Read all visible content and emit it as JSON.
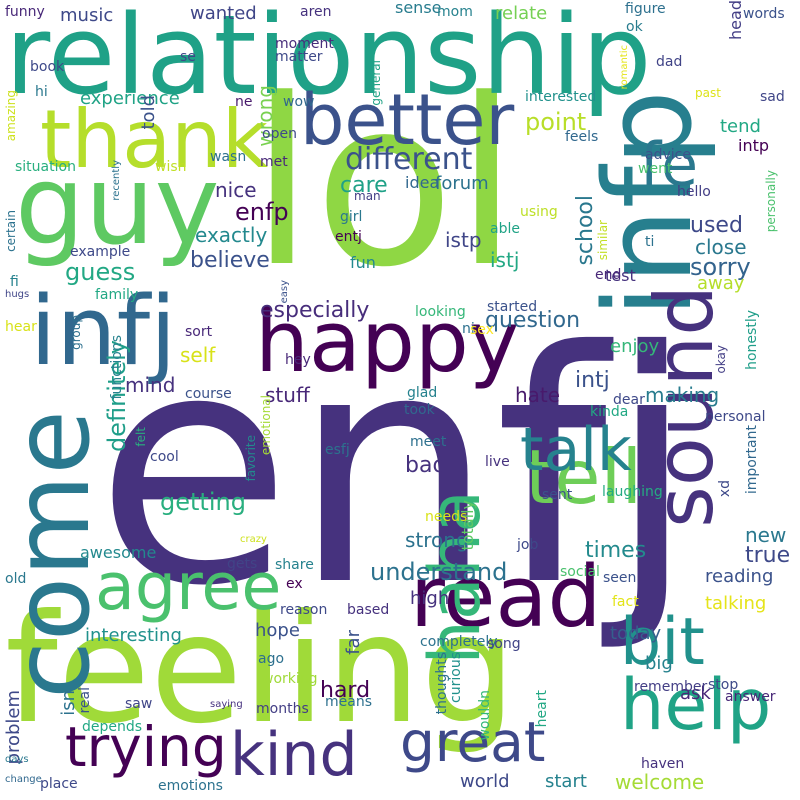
{
  "background": "#ffffff",
  "palette": [
    "#440154",
    "#46327e",
    "#365c8d",
    "#277f8e",
    "#1fa187",
    "#4ac16d",
    "#a0da39",
    "#fde725"
  ],
  "words": [
    {
      "text": "enfj",
      "color": "#46327e"
    },
    {
      "text": "lol",
      "color": "#8fd744"
    },
    {
      "text": "relationship",
      "color": "#1fa187"
    },
    {
      "text": "feeling",
      "color": "#a0da39"
    },
    {
      "text": "infp",
      "color": "#277f8e"
    },
    {
      "text": "guy",
      "color": "#5ec962"
    },
    {
      "text": "infj",
      "color": "#31688e"
    },
    {
      "text": "come",
      "color": "#2a788e"
    },
    {
      "text": "happy",
      "color": "#440154"
    },
    {
      "text": "thank",
      "color": "#b5de2b"
    },
    {
      "text": "better",
      "color": "#3b528b"
    },
    {
      "text": "sound",
      "color": "#46327e"
    },
    {
      "text": "read",
      "color": "#440154"
    },
    {
      "text": "tell",
      "color": "#6ece58"
    },
    {
      "text": "haha",
      "color": "#35b779"
    },
    {
      "text": "agree",
      "color": "#4ac16d"
    },
    {
      "text": "kind",
      "color": "#46327e"
    },
    {
      "text": "help",
      "color": "#20a386"
    },
    {
      "text": "bit",
      "color": "#21918c"
    },
    {
      "text": "great",
      "color": "#3e4989"
    },
    {
      "text": "trying",
      "color": "#440154"
    },
    {
      "text": "fe",
      "color": "#2a788e"
    },
    {
      "text": "talk",
      "color": "#26828e"
    },
    {
      "text": "different",
      "color": "#3b528b"
    },
    {
      "text": "understand",
      "color": "#2c728e"
    },
    {
      "text": "question",
      "color": "#31688e"
    },
    {
      "text": "definitely",
      "color": "#1f9e89"
    },
    {
      "text": "especially",
      "color": "#472d7b"
    },
    {
      "text": "getting",
      "color": "#29af7f"
    },
    {
      "text": "believe",
      "color": "#3b528b"
    },
    {
      "text": "guess",
      "color": "#22a884"
    },
    {
      "text": "enfp",
      "color": "#440154"
    },
    {
      "text": "care",
      "color": "#1fa187"
    },
    {
      "text": "point",
      "color": "#b8de29"
    },
    {
      "text": "sorry",
      "color": "#33638d"
    },
    {
      "text": "used",
      "color": "#3e4989"
    },
    {
      "text": "school",
      "color": "#2a788e"
    },
    {
      "text": "exactly",
      "color": "#23898e"
    },
    {
      "text": "nice",
      "color": "#46327e"
    },
    {
      "text": "wrong",
      "color": "#7ad151"
    },
    {
      "text": "istp",
      "color": "#404688"
    },
    {
      "text": "istj",
      "color": "#22a884"
    },
    {
      "text": "intj",
      "color": "#3b528b"
    },
    {
      "text": "times",
      "color": "#238a8d"
    },
    {
      "text": "true",
      "color": "#3e4989"
    },
    {
      "text": "new",
      "color": "#2a788e"
    },
    {
      "text": "bad",
      "color": "#46327e"
    },
    {
      "text": "hard",
      "color": "#440154"
    },
    {
      "text": "strong",
      "color": "#2c728e"
    },
    {
      "text": "stuff",
      "color": "#482878"
    },
    {
      "text": "hate",
      "color": "#481a6c"
    },
    {
      "text": "making",
      "color": "#287c8e"
    },
    {
      "text": "mind",
      "color": "#46327e"
    },
    {
      "text": "self",
      "color": "#d8e219"
    },
    {
      "text": "experience",
      "color": "#20a386"
    },
    {
      "text": "tend",
      "color": "#22a884"
    },
    {
      "text": "music",
      "color": "#3e4989"
    },
    {
      "text": "wanted",
      "color": "#404688"
    },
    {
      "text": "relate",
      "color": "#75d054"
    },
    {
      "text": "sense",
      "color": "#287c8e"
    },
    {
      "text": "told",
      "color": "#3b528b"
    },
    {
      "text": "forum",
      "color": "#2c728e"
    },
    {
      "text": "idea",
      "color": "#31688e"
    },
    {
      "text": "enjoy",
      "color": "#35b779"
    },
    {
      "text": "close",
      "color": "#2a788e"
    },
    {
      "text": "away",
      "color": "#b5de2b"
    },
    {
      "text": "test",
      "color": "#46327e"
    },
    {
      "text": "fun",
      "color": "#23898e"
    },
    {
      "text": "talking",
      "color": "#e5e419"
    },
    {
      "text": "reading",
      "color": "#3b528b"
    },
    {
      "text": "welcome",
      "color": "#a5db36"
    },
    {
      "text": "today",
      "color": "#355f8d"
    },
    {
      "text": "interesting",
      "color": "#21918c"
    },
    {
      "text": "hope",
      "color": "#3b528b"
    },
    {
      "text": "big",
      "color": "#26828e"
    },
    {
      "text": "ask",
      "color": "#482878"
    },
    {
      "text": "high",
      "color": "#46327e"
    },
    {
      "text": "far",
      "color": "#3b528b"
    },
    {
      "text": "problem",
      "color": "#3e4989"
    },
    {
      "text": "isn",
      "color": "#2c728e"
    },
    {
      "text": "world",
      "color": "#3e4989"
    },
    {
      "text": "start",
      "color": "#26828e"
    },
    {
      "text": "totally",
      "color": "#5ec962"
    },
    {
      "text": "awesome",
      "color": "#23898e"
    },
    {
      "text": "wow",
      "color": "#31688e"
    },
    {
      "text": "moment",
      "color": "#472d7b"
    },
    {
      "text": "matter",
      "color": "#3e4989"
    },
    {
      "text": "funny",
      "color": "#482878"
    },
    {
      "text": "aren",
      "color": "#46327e"
    },
    {
      "text": "mom",
      "color": "#26828e"
    },
    {
      "text": "figure",
      "color": "#2d708e"
    },
    {
      "text": "ok",
      "color": "#287c8e"
    },
    {
      "text": "head",
      "color": "#433e85"
    },
    {
      "text": "words",
      "color": "#3b528b"
    },
    {
      "text": "dad",
      "color": "#414487"
    },
    {
      "text": "book",
      "color": "#3e4989"
    },
    {
      "text": "se",
      "color": "#404688"
    },
    {
      "text": "hi",
      "color": "#2a788e"
    },
    {
      "text": "amazing",
      "color": "#cde11d"
    },
    {
      "text": "ne",
      "color": "#481a6c"
    },
    {
      "text": "interested",
      "color": "#21918c"
    },
    {
      "text": "past",
      "color": "#dde318"
    },
    {
      "text": "sad",
      "color": "#404688"
    },
    {
      "text": "general",
      "color": "#20a386"
    },
    {
      "text": "romantic",
      "color": "#e5e419"
    },
    {
      "text": "situation",
      "color": "#29af7f"
    },
    {
      "text": "wish",
      "color": "#c0df25"
    },
    {
      "text": "wasn",
      "color": "#2d708e"
    },
    {
      "text": "met",
      "color": "#482878"
    },
    {
      "text": "recently",
      "color": "#2c728e"
    },
    {
      "text": "open",
      "color": "#3e4989"
    },
    {
      "text": "feels",
      "color": "#31688e"
    },
    {
      "text": "advice",
      "color": "#3b528b"
    },
    {
      "text": "went",
      "color": "#4ac16d"
    },
    {
      "text": "hello",
      "color": "#433e85"
    },
    {
      "text": "intp",
      "color": "#440154"
    },
    {
      "text": "personally",
      "color": "#4ac16d"
    },
    {
      "text": "ti",
      "color": "#2c728e"
    },
    {
      "text": "similar",
      "color": "#c2df23"
    },
    {
      "text": "girl",
      "color": "#2a788e"
    },
    {
      "text": "man",
      "color": "#433e85"
    },
    {
      "text": "using",
      "color": "#bddf26"
    },
    {
      "text": "able",
      "color": "#20a386"
    },
    {
      "text": "entj",
      "color": "#440154"
    },
    {
      "text": "end",
      "color": "#482878"
    },
    {
      "text": "example",
      "color": "#3e4989"
    },
    {
      "text": "certain",
      "color": "#2c728e"
    },
    {
      "text": "fi",
      "color": "#26828e"
    },
    {
      "text": "hugs",
      "color": "#404688"
    },
    {
      "text": "family",
      "color": "#22a884"
    },
    {
      "text": "easy",
      "color": "#3b528b"
    },
    {
      "text": "hear",
      "color": "#d8e219"
    },
    {
      "text": "group",
      "color": "#2d708e"
    },
    {
      "text": "sort",
      "color": "#482878"
    },
    {
      "text": "looking",
      "color": "#35b779"
    },
    {
      "text": "started",
      "color": "#3b528b"
    },
    {
      "text": "ni",
      "color": "#2d708e"
    },
    {
      "text": "sex",
      "color": "#fde725"
    },
    {
      "text": "okay",
      "color": "#433e85"
    },
    {
      "text": "honestly",
      "color": "#1f9e89"
    },
    {
      "text": "functions",
      "color": "#26828e"
    },
    {
      "text": "course",
      "color": "#3b528b"
    },
    {
      "text": "hey",
      "color": "#482878"
    },
    {
      "text": "glad",
      "color": "#26828e"
    },
    {
      "text": "took",
      "color": "#31688e"
    },
    {
      "text": "dear",
      "color": "#3e4989"
    },
    {
      "text": "kinda",
      "color": "#22a884"
    },
    {
      "text": "personal",
      "color": "#3e4989"
    },
    {
      "text": "important",
      "color": "#31688e"
    },
    {
      "text": "emotional",
      "color": "#a5db36"
    },
    {
      "text": "favorite",
      "color": "#238a8d"
    },
    {
      "text": "felt",
      "color": "#29af7f"
    },
    {
      "text": "cool",
      "color": "#3e4989"
    },
    {
      "text": "meet",
      "color": "#2d708e"
    },
    {
      "text": "esfj",
      "color": "#2c728e"
    },
    {
      "text": "live",
      "color": "#46327e"
    },
    {
      "text": "sent",
      "color": "#3b528b"
    },
    {
      "text": "laughing",
      "color": "#25ab82"
    },
    {
      "text": "xd",
      "color": "#3e4989"
    },
    {
      "text": "needs",
      "color": "#d8e219"
    },
    {
      "text": "crazy",
      "color": "#cde11d"
    },
    {
      "text": "share",
      "color": "#26828e"
    },
    {
      "text": "job",
      "color": "#3e4989"
    },
    {
      "text": "old",
      "color": "#2a788e"
    },
    {
      "text": "gets",
      "color": "#414487"
    },
    {
      "text": "ex",
      "color": "#440154"
    },
    {
      "text": "social",
      "color": "#4ac16d"
    },
    {
      "text": "seen",
      "color": "#3b528b"
    },
    {
      "text": "reason",
      "color": "#3e4989"
    },
    {
      "text": "based",
      "color": "#46327e"
    },
    {
      "text": "fact",
      "color": "#e2e418"
    },
    {
      "text": "completely",
      "color": "#2c728e"
    },
    {
      "text": "song",
      "color": "#414487"
    },
    {
      "text": "ago",
      "color": "#2d708e"
    },
    {
      "text": "working",
      "color": "#a0da39"
    },
    {
      "text": "real",
      "color": "#3b528b"
    },
    {
      "text": "months",
      "color": "#433e85"
    },
    {
      "text": "thoughts",
      "color": "#2d708e"
    },
    {
      "text": "curious",
      "color": "#21918c"
    },
    {
      "text": "wouldn",
      "color": "#35b779"
    },
    {
      "text": "heart",
      "color": "#22a884"
    },
    {
      "text": "remember",
      "color": "#433e85"
    },
    {
      "text": "stop",
      "color": "#3e4989"
    },
    {
      "text": "answer",
      "color": "#482878"
    },
    {
      "text": "saw",
      "color": "#404688"
    },
    {
      "text": "saying",
      "color": "#46327e"
    },
    {
      "text": "means",
      "color": "#2d708e"
    },
    {
      "text": "depends",
      "color": "#22a884"
    },
    {
      "text": "days",
      "color": "#2a788e"
    },
    {
      "text": "change",
      "color": "#31688e"
    },
    {
      "text": "place",
      "color": "#3e4989"
    },
    {
      "text": "emotions",
      "color": "#2c728e"
    },
    {
      "text": "haven",
      "color": "#46327e"
    }
  ]
}
